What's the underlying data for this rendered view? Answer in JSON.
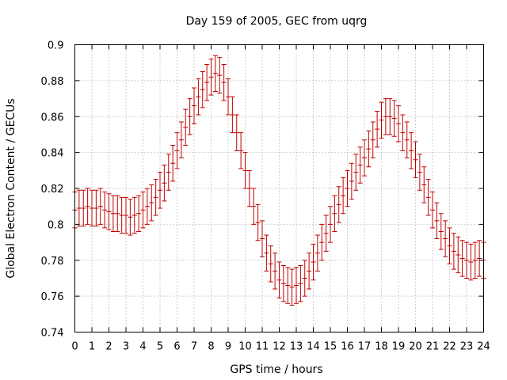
{
  "chart_data": {
    "type": "scatter",
    "title": "Day 159 of 2005, GEC from uqrg",
    "xlabel": "GPS time / hours",
    "ylabel": "Global Electron Content / GECUs",
    "xlim": [
      0,
      24
    ],
    "ylim": [
      0.74,
      0.9
    ],
    "xticks": [
      "0",
      "1",
      "2",
      "3",
      "4",
      "5",
      "6",
      "7",
      "8",
      "9",
      "10",
      "11",
      "12",
      "13",
      "14",
      "15",
      "16",
      "17",
      "18",
      "19",
      "20",
      "21",
      "22",
      "23",
      "24"
    ],
    "yticks": [
      "0.74",
      "0.76",
      "0.78",
      "0.8",
      "0.82",
      "0.84",
      "0.86",
      "0.88",
      "0.9"
    ],
    "grid": true,
    "series_color": "#c00000",
    "error_bar": 0.01,
    "x": [
      0,
      0.25,
      0.5,
      0.75,
      1,
      1.25,
      1.5,
      1.75,
      2,
      2.25,
      2.5,
      2.75,
      3,
      3.25,
      3.5,
      3.75,
      4,
      4.25,
      4.5,
      4.75,
      5,
      5.25,
      5.5,
      5.75,
      6,
      6.25,
      6.5,
      6.75,
      7,
      7.25,
      7.5,
      7.75,
      8,
      8.25,
      8.5,
      8.75,
      9,
      9.25,
      9.5,
      9.75,
      10,
      10.25,
      10.5,
      10.75,
      11,
      11.25,
      11.5,
      11.75,
      12,
      12.25,
      12.5,
      12.75,
      13,
      13.25,
      13.5,
      13.75,
      14,
      14.25,
      14.5,
      14.75,
      15,
      15.25,
      15.5,
      15.75,
      16,
      16.25,
      16.5,
      16.75,
      17,
      17.25,
      17.5,
      17.75,
      18,
      18.25,
      18.5,
      18.75,
      19,
      19.25,
      19.5,
      19.75,
      20,
      20.25,
      20.5,
      20.75,
      21,
      21.25,
      21.5,
      21.75,
      22,
      22.25,
      22.5,
      22.75,
      23,
      23.25,
      23.5,
      23.75,
      24
    ],
    "y": [
      0.808,
      0.809,
      0.809,
      0.81,
      0.809,
      0.809,
      0.81,
      0.808,
      0.807,
      0.806,
      0.806,
      0.805,
      0.805,
      0.804,
      0.805,
      0.806,
      0.808,
      0.81,
      0.812,
      0.815,
      0.819,
      0.823,
      0.829,
      0.834,
      0.841,
      0.847,
      0.854,
      0.86,
      0.866,
      0.871,
      0.875,
      0.879,
      0.882,
      0.884,
      0.883,
      0.879,
      0.871,
      0.861,
      0.851,
      0.841,
      0.83,
      0.82,
      0.81,
      0.801,
      0.792,
      0.784,
      0.778,
      0.774,
      0.769,
      0.767,
      0.766,
      0.765,
      0.766,
      0.767,
      0.77,
      0.774,
      0.779,
      0.784,
      0.79,
      0.795,
      0.8,
      0.806,
      0.811,
      0.816,
      0.82,
      0.824,
      0.829,
      0.833,
      0.837,
      0.842,
      0.847,
      0.853,
      0.858,
      0.86,
      0.86,
      0.859,
      0.856,
      0.851,
      0.847,
      0.841,
      0.836,
      0.829,
      0.822,
      0.815,
      0.808,
      0.802,
      0.796,
      0.792,
      0.788,
      0.785,
      0.783,
      0.781,
      0.78,
      0.779,
      0.78,
      0.781,
      0.78
    ]
  }
}
